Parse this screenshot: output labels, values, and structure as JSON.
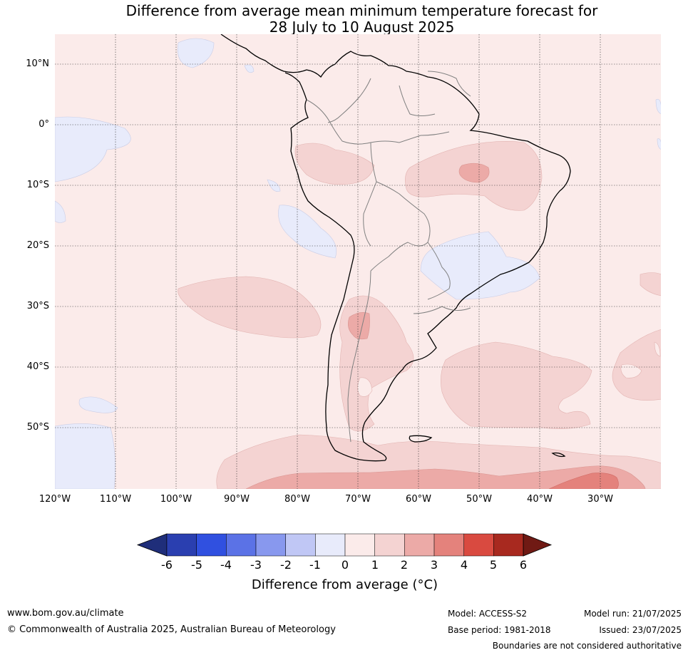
{
  "title_line1": "Difference from average mean minimum temperature forecast for",
  "title_line2": "28 July to 10 August 2025",
  "lat_labels": [
    "10°N",
    "0°",
    "10°S",
    "20°S",
    "30°S",
    "40°S",
    "50°S"
  ],
  "lon_labels": [
    "120°W",
    "110°W",
    "100°W",
    "90°W",
    "80°W",
    "70°W",
    "60°W",
    "50°W",
    "40°W",
    "30°W"
  ],
  "colorbar": {
    "ticks": [
      "-6",
      "-5",
      "-4",
      "-3",
      "-2",
      "-1",
      "0",
      "1",
      "2",
      "3",
      "4",
      "5",
      "6"
    ],
    "colors": [
      "#1f2e7a",
      "#2a3fb0",
      "#3050e0",
      "#5b72e6",
      "#8898ee",
      "#c0c7f5",
      "#e8ebfb",
      "#fbebea",
      "#f4d3d2",
      "#ecaaa7",
      "#e4827c",
      "#d94a40",
      "#a8291f",
      "#701a14"
    ],
    "label": "Difference from average (°C)"
  },
  "footer": {
    "website": "www.bom.gov.au/climate",
    "copyright": "© Commonwealth of Australia 2025, Australian Bureau of Meteorology",
    "model": "Model: ACCESS-S2",
    "base_period": "Base period: 1981-2018",
    "model_run": "Model run: 21/07/2025",
    "issued": "Issued: 23/07/2025",
    "disclaimer": "Boundaries are not considered authoritative"
  }
}
